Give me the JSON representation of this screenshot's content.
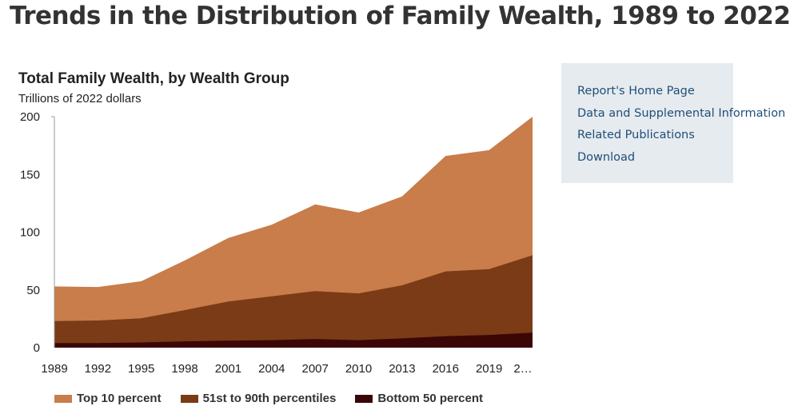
{
  "page": {
    "title": "Trends in the Distribution of Family Wealth, 1989 to 2022"
  },
  "side_panel": {
    "links": [
      {
        "label": "Report's Home Page"
      },
      {
        "label": "Data and Supplemental Information"
      },
      {
        "label": "Related Publications"
      },
      {
        "label": "Download"
      }
    ]
  },
  "chart_data": {
    "type": "area",
    "stacked": true,
    "title": "Total Family Wealth, by Wealth Group",
    "subtitle": "Trillions of 2022 dollars",
    "x": [
      "1989",
      "1992",
      "1995",
      "1998",
      "2001",
      "2004",
      "2007",
      "2010",
      "2013",
      "2016",
      "2019",
      "2022"
    ],
    "x_tick_labels": [
      "1989",
      "1992",
      "1995",
      "1998",
      "2001",
      "2004",
      "2007",
      "2010",
      "2013",
      "2016",
      "2019",
      "2…"
    ],
    "ylim": [
      0,
      200
    ],
    "yticks": [
      0,
      50,
      100,
      150,
      200
    ],
    "grid": false,
    "legend_position": "bottom",
    "series": [
      {
        "name": "Bottom 50 percent",
        "color": "#3b0606",
        "values": [
          4,
          4,
          4.5,
          5.5,
          6,
          6.5,
          7.5,
          6.5,
          8,
          10,
          11,
          13
        ]
      },
      {
        "name": "51st to 90th percentiles",
        "color": "#7a3b16",
        "values": [
          19,
          19.5,
          21,
          27,
          34,
          38,
          41.5,
          40.5,
          46,
          56,
          57,
          67
        ]
      },
      {
        "name": "Top 10 percent",
        "color": "#c87d4a",
        "values": [
          30,
          29,
          32,
          43,
          55,
          62,
          75,
          70,
          77,
          100,
          103,
          120
        ]
      }
    ],
    "legend_order": [
      "Top 10 percent",
      "51st to 90th percentiles",
      "Bottom 50 percent"
    ]
  }
}
